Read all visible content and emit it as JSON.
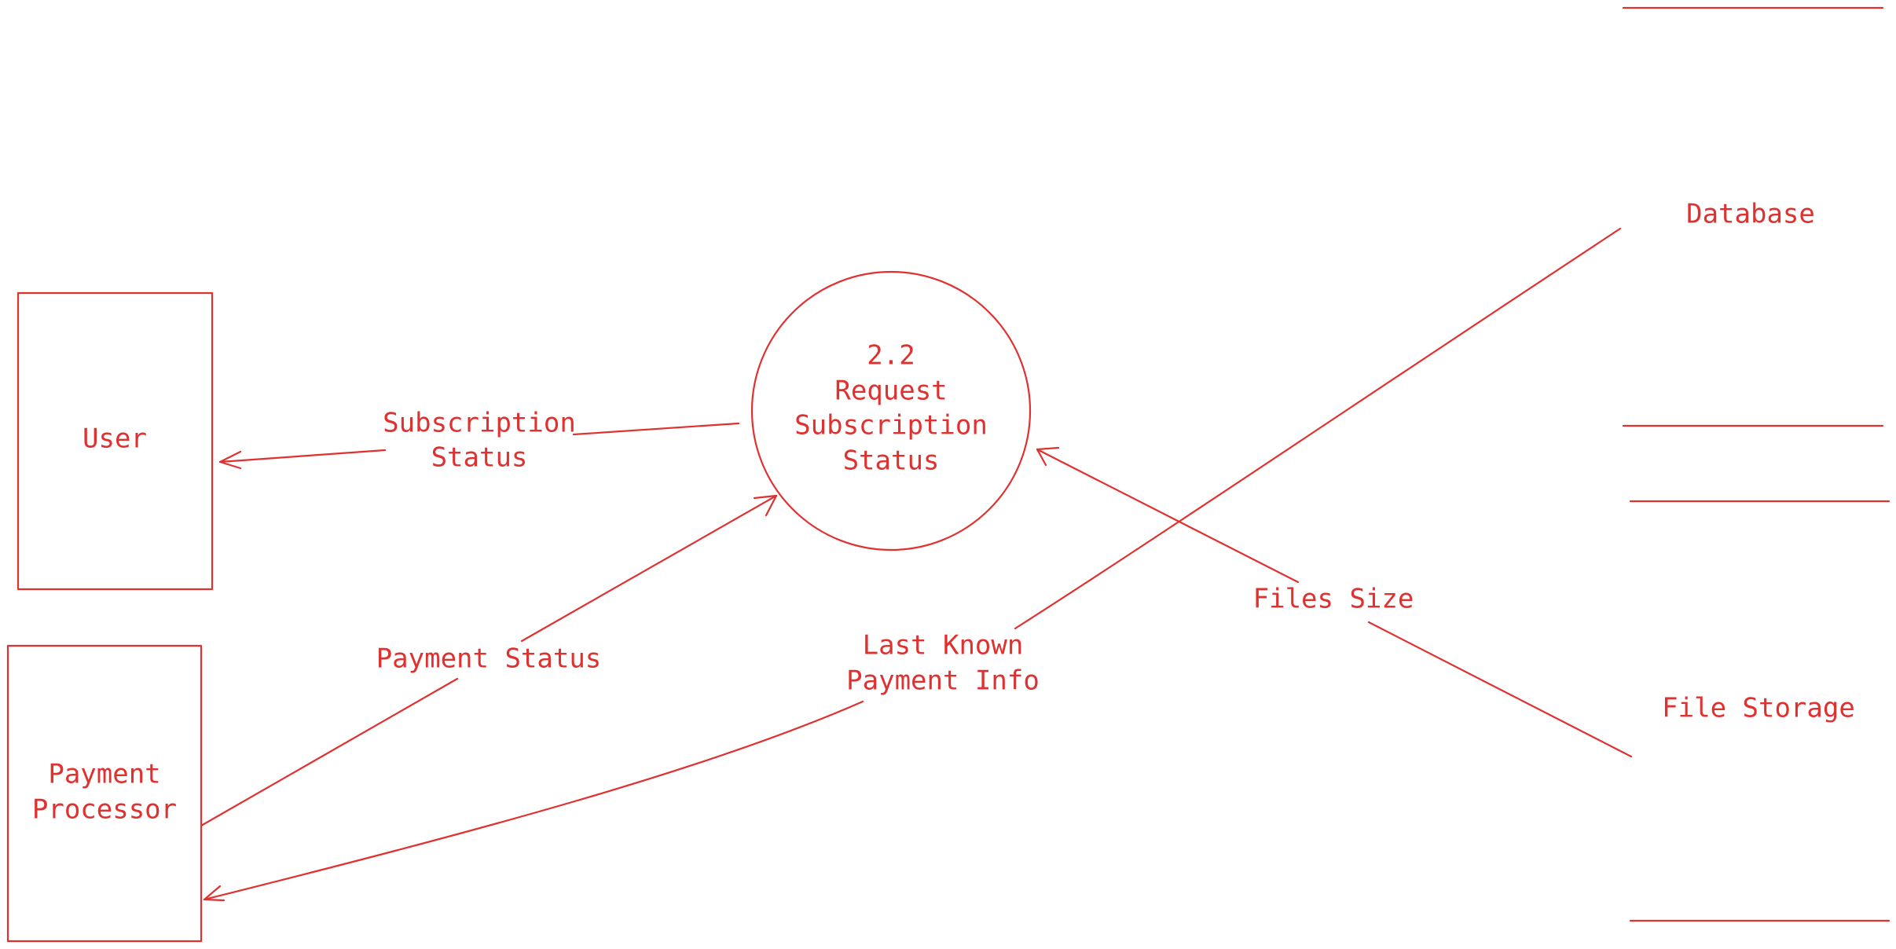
{
  "colors": {
    "ink": "#e03131",
    "background": "#ffffff"
  },
  "entities": {
    "user": {
      "label": "User"
    },
    "payment_processor": {
      "label_lines": [
        "Payment",
        "Processor"
      ]
    }
  },
  "process": {
    "label_lines": [
      "2.2",
      "Request",
      "Subscription",
      "Status"
    ]
  },
  "stores": {
    "database": {
      "label": "Database"
    },
    "file_storage": {
      "label": "File Storage"
    }
  },
  "flows": {
    "subscription_status": {
      "label_lines": [
        "Subscription",
        "Status"
      ]
    },
    "payment_status": {
      "label": "Payment Status"
    },
    "last_known_payment_info": {
      "label_lines": [
        "Last Known",
        "Payment Info"
      ]
    },
    "files_size": {
      "label": "Files Size"
    }
  }
}
